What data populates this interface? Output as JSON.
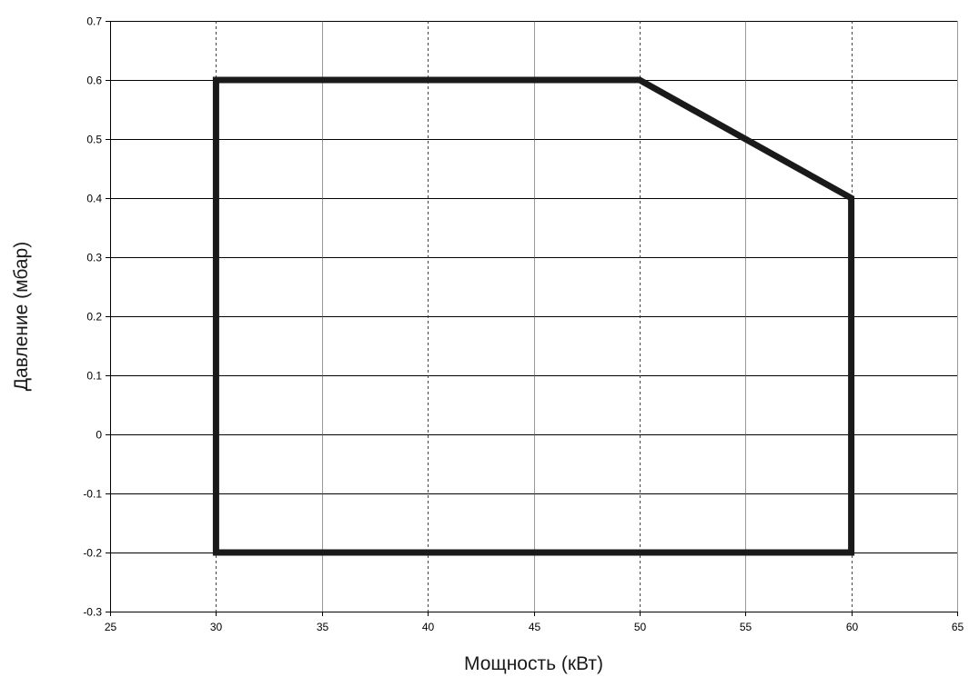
{
  "chart_data": {
    "type": "line",
    "title": "",
    "xlabel": "Мощность (кВт)",
    "ylabel": "Давление (мбар)",
    "xlim": [
      25,
      65
    ],
    "ylim": [
      -0.3,
      0.7
    ],
    "x_ticks": [
      25,
      30,
      35,
      40,
      45,
      50,
      55,
      60,
      65
    ],
    "x_tick_labels": [
      "25",
      "30",
      "35",
      "40",
      "45",
      "50",
      "55",
      "60",
      "65"
    ],
    "y_ticks": [
      -0.3,
      -0.2,
      -0.1,
      0,
      0.1,
      0.2,
      0.3,
      0.4,
      0.5,
      0.6,
      0.7
    ],
    "y_tick_labels": [
      "-0.3",
      "-0.2",
      "-0.1",
      "0",
      "0.1",
      "0.2",
      "0.3",
      "0.4",
      "0.5",
      "0.6",
      "0.7"
    ],
    "dashed_x_gridlines": [
      30,
      40,
      50,
      60
    ],
    "grid": true,
    "legend": "none",
    "series": [
      {
        "color": "#1a1a1a",
        "closed": true,
        "x": [
          30,
          50,
          60,
          60,
          30,
          30
        ],
        "y": [
          0.6,
          0.6,
          0.4,
          -0.2,
          -0.2,
          0.6
        ]
      }
    ]
  }
}
